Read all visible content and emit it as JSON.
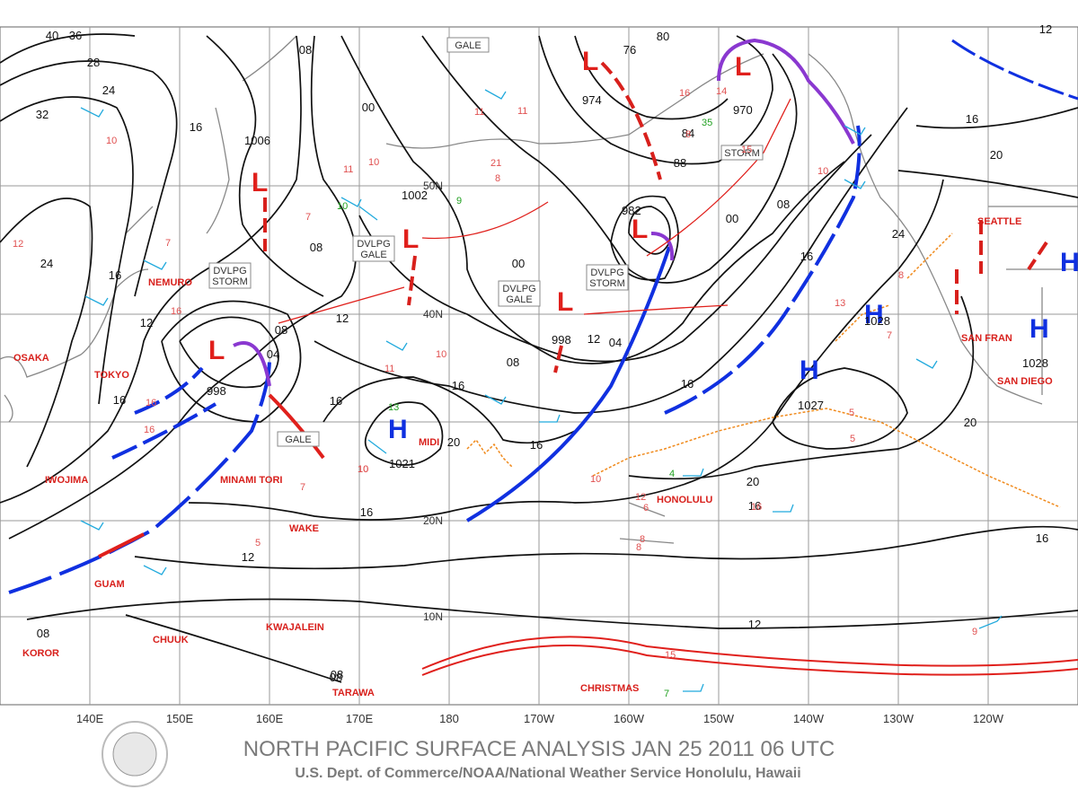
{
  "header": {
    "title": "NORTH PACIFIC SURFACE ANALYSIS JAN 25 2011 06 UTC",
    "subtitle": "U.S. Dept. of Commerce/NOAA/National Weather Service Honolulu, Hawaii"
  },
  "map": {
    "longitudes": [
      "140E",
      "150E",
      "160E",
      "170E",
      "180",
      "170W",
      "160W",
      "150W",
      "140W",
      "130W",
      "120W"
    ],
    "latitudes": [
      "50N",
      "40N",
      "20N",
      "10N"
    ],
    "places": [
      "OSAKA",
      "TOKYO",
      "NEMURO",
      "IWOJIMA",
      "MINAMI TORI",
      "WAKE",
      "GUAM",
      "CHUUK",
      "KWAJALEIN",
      "KOROR",
      "TARAWA",
      "MIDI",
      "HONOLULU",
      "CHRISTMAS",
      "SEATTLE",
      "SAN FRAN",
      "SAN DIEGO"
    ],
    "lows": [
      "L",
      "L",
      "L",
      "L",
      "L",
      "L",
      "L"
    ],
    "highs": [
      "H",
      "H",
      "H",
      "H",
      "H"
    ],
    "central_pressures": [
      "998",
      "1006",
      "1002",
      "974",
      "970",
      "982",
      "998",
      "1021",
      "1028",
      "1027",
      "1028"
    ],
    "warnings": [
      [
        "GALE"
      ],
      [
        "STORM"
      ],
      [
        "DVLPG",
        "GALE"
      ],
      [
        "DVLPG",
        "STORM"
      ],
      [
        "DVLPG",
        "GALE"
      ],
      [
        "DVLPG",
        "STORM"
      ],
      [
        "GALE"
      ]
    ],
    "isobar_labels": [
      "40",
      "36",
      "28",
      "24",
      "32",
      "16",
      "08",
      "00",
      "16",
      "24",
      "12",
      "16",
      "08",
      "04",
      "12",
      "16",
      "08",
      "00",
      "04",
      "08",
      "12",
      "16",
      "20",
      "16",
      "12",
      "08",
      "76",
      "80",
      "84",
      "88",
      "00",
      "08",
      "16",
      "16",
      "24",
      "20",
      "20",
      "16",
      "12",
      "16",
      "20",
      "16",
      "12",
      "08",
      "08",
      "16"
    ],
    "wind_speeds": [
      "10",
      "11",
      "10",
      "10",
      "7",
      "10",
      "16",
      "10",
      "7",
      "11",
      "9",
      "5",
      "11",
      "11",
      "21",
      "8",
      "16",
      "35",
      "14",
      "8",
      "13",
      "7",
      "15",
      "10",
      "4",
      "12",
      "6",
      "8",
      "16",
      "9",
      "15",
      "7",
      "5",
      "10",
      "7",
      "5",
      "8",
      "16",
      "13",
      "16",
      "10",
      "8",
      "12"
    ]
  }
}
